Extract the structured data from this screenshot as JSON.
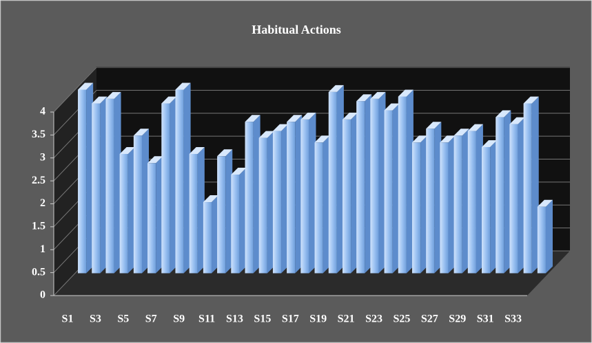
{
  "chart_data": {
    "type": "bar3d",
    "title": "Habitual Actions",
    "categories": [
      "S1",
      null,
      "S3",
      null,
      "S5",
      null,
      "S7",
      null,
      "S9",
      null,
      "S11",
      null,
      "S13",
      null,
      "S15",
      null,
      "S17",
      null,
      "S19",
      null,
      "S21",
      null,
      "S23",
      null,
      "S25",
      null,
      "S27",
      null,
      "S29",
      null,
      "S31",
      null,
      "S33",
      null
    ],
    "values": [
      4.0,
      3.7,
      3.8,
      2.6,
      3.0,
      2.4,
      3.7,
      4.0,
      2.6,
      1.55,
      2.55,
      2.15,
      3.3,
      2.95,
      3.1,
      3.3,
      3.35,
      2.85,
      3.95,
      3.35,
      3.75,
      3.8,
      3.55,
      3.85,
      2.85,
      3.15,
      2.85,
      3.0,
      3.1,
      2.75,
      3.4,
      3.25,
      3.7,
      1.45
    ],
    "color": "#8fb8ee",
    "ylim": [
      0,
      4
    ],
    "yticks": [
      0,
      0.5,
      1,
      1.5,
      2,
      2.5,
      3,
      3.5,
      4
    ],
    "grid": true
  }
}
